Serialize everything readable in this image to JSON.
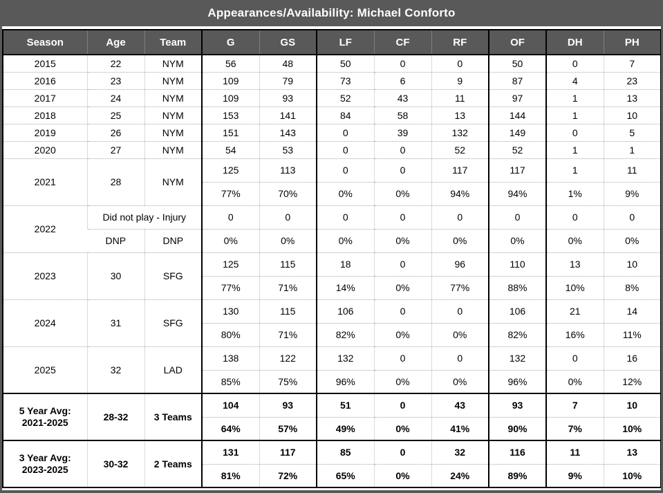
{
  "chart_data": {
    "type": "table",
    "title": "Appearances/Availability: Michael Conforto",
    "columns": [
      "Season",
      "Age",
      "Team",
      "G",
      "GS",
      "LF",
      "CF",
      "RF",
      "OF",
      "DH",
      "PH"
    ],
    "stat_columns": [
      "G",
      "GS",
      "LF",
      "CF",
      "RF",
      "OF",
      "DH",
      "PH"
    ],
    "season_rows": [
      {
        "type": "single",
        "season": "2015",
        "age": "22",
        "team": "NYM",
        "stats": [
          "56",
          "48",
          "50",
          "0",
          "0",
          "50",
          "0",
          "7"
        ]
      },
      {
        "type": "single",
        "season": "2016",
        "age": "23",
        "team": "NYM",
        "stats": [
          "109",
          "79",
          "73",
          "6",
          "9",
          "87",
          "4",
          "23"
        ]
      },
      {
        "type": "single",
        "season": "2017",
        "age": "24",
        "team": "NYM",
        "stats": [
          "109",
          "93",
          "52",
          "43",
          "11",
          "97",
          "1",
          "13"
        ]
      },
      {
        "type": "single",
        "season": "2018",
        "age": "25",
        "team": "NYM",
        "stats": [
          "153",
          "141",
          "84",
          "58",
          "13",
          "144",
          "1",
          "10"
        ]
      },
      {
        "type": "single",
        "season": "2019",
        "age": "26",
        "team": "NYM",
        "stats": [
          "151",
          "143",
          "0",
          "39",
          "132",
          "149",
          "0",
          "5"
        ]
      },
      {
        "type": "single",
        "season": "2020",
        "age": "27",
        "team": "NYM",
        "stats": [
          "54",
          "53",
          "0",
          "0",
          "52",
          "52",
          "1",
          "1"
        ]
      },
      {
        "type": "double",
        "season": "2021",
        "age": "28",
        "team": "NYM",
        "counts": [
          "125",
          "113",
          "0",
          "0",
          "117",
          "117",
          "1",
          "11"
        ],
        "pcts": [
          "77%",
          "70%",
          "0%",
          "0%",
          "94%",
          "94%",
          "1%",
          "9%"
        ]
      },
      {
        "type": "dnp",
        "season": "2022",
        "note": "Did not play - Injury",
        "age_sub": "DNP",
        "team_sub": "DNP",
        "counts": [
          "0",
          "0",
          "0",
          "0",
          "0",
          "0",
          "0",
          "0"
        ],
        "pcts": [
          "0%",
          "0%",
          "0%",
          "0%",
          "0%",
          "0%",
          "0%",
          "0%"
        ]
      },
      {
        "type": "double",
        "season": "2023",
        "age": "30",
        "team": "SFG",
        "counts": [
          "125",
          "115",
          "18",
          "0",
          "96",
          "110",
          "13",
          "10"
        ],
        "pcts": [
          "77%",
          "71%",
          "14%",
          "0%",
          "77%",
          "88%",
          "10%",
          "8%"
        ]
      },
      {
        "type": "double",
        "season": "2024",
        "age": "31",
        "team": "SFG",
        "counts": [
          "130",
          "115",
          "106",
          "0",
          "0",
          "106",
          "21",
          "14"
        ],
        "pcts": [
          "80%",
          "71%",
          "82%",
          "0%",
          "0%",
          "82%",
          "16%",
          "11%"
        ]
      },
      {
        "type": "double",
        "season": "2025",
        "age": "32",
        "team": "LAD",
        "counts": [
          "138",
          "122",
          "132",
          "0",
          "0",
          "132",
          "0",
          "16"
        ],
        "pcts": [
          "85%",
          "75%",
          "96%",
          "0%",
          "0%",
          "96%",
          "0%",
          "12%"
        ]
      }
    ],
    "summary_rows": [
      {
        "label_line1": "5 Year Avg:",
        "label_line2": "2021-2025",
        "age": "28-32",
        "team": "3 Teams",
        "counts": [
          "104",
          "93",
          "51",
          "0",
          "43",
          "93",
          "7",
          "10"
        ],
        "pcts": [
          "64%",
          "57%",
          "49%",
          "0%",
          "41%",
          "90%",
          "7%",
          "10%"
        ]
      },
      {
        "label_line1": "3 Year Avg:",
        "label_line2": "2023-2025",
        "age": "30-32",
        "team": "2 Teams",
        "counts": [
          "131",
          "117",
          "85",
          "0",
          "32",
          "116",
          "11",
          "13"
        ],
        "pcts": [
          "81%",
          "72%",
          "65%",
          "0%",
          "24%",
          "89%",
          "9%",
          "10%"
        ]
      }
    ],
    "layout_hints": {
      "grid": "on",
      "thick_column_dividers": [
        "Team|G",
        "GS|LF",
        "RF|OF",
        "OF|DH"
      ],
      "legend_position": "none"
    },
    "colors": {
      "header_bg": "#595959",
      "header_text": "#ffffff",
      "frame": "#595959",
      "border_black": "#000000",
      "grid_light": "#d9d9d9",
      "grid_dotted": "#a6a6a6",
      "body_text": "#000000"
    }
  }
}
